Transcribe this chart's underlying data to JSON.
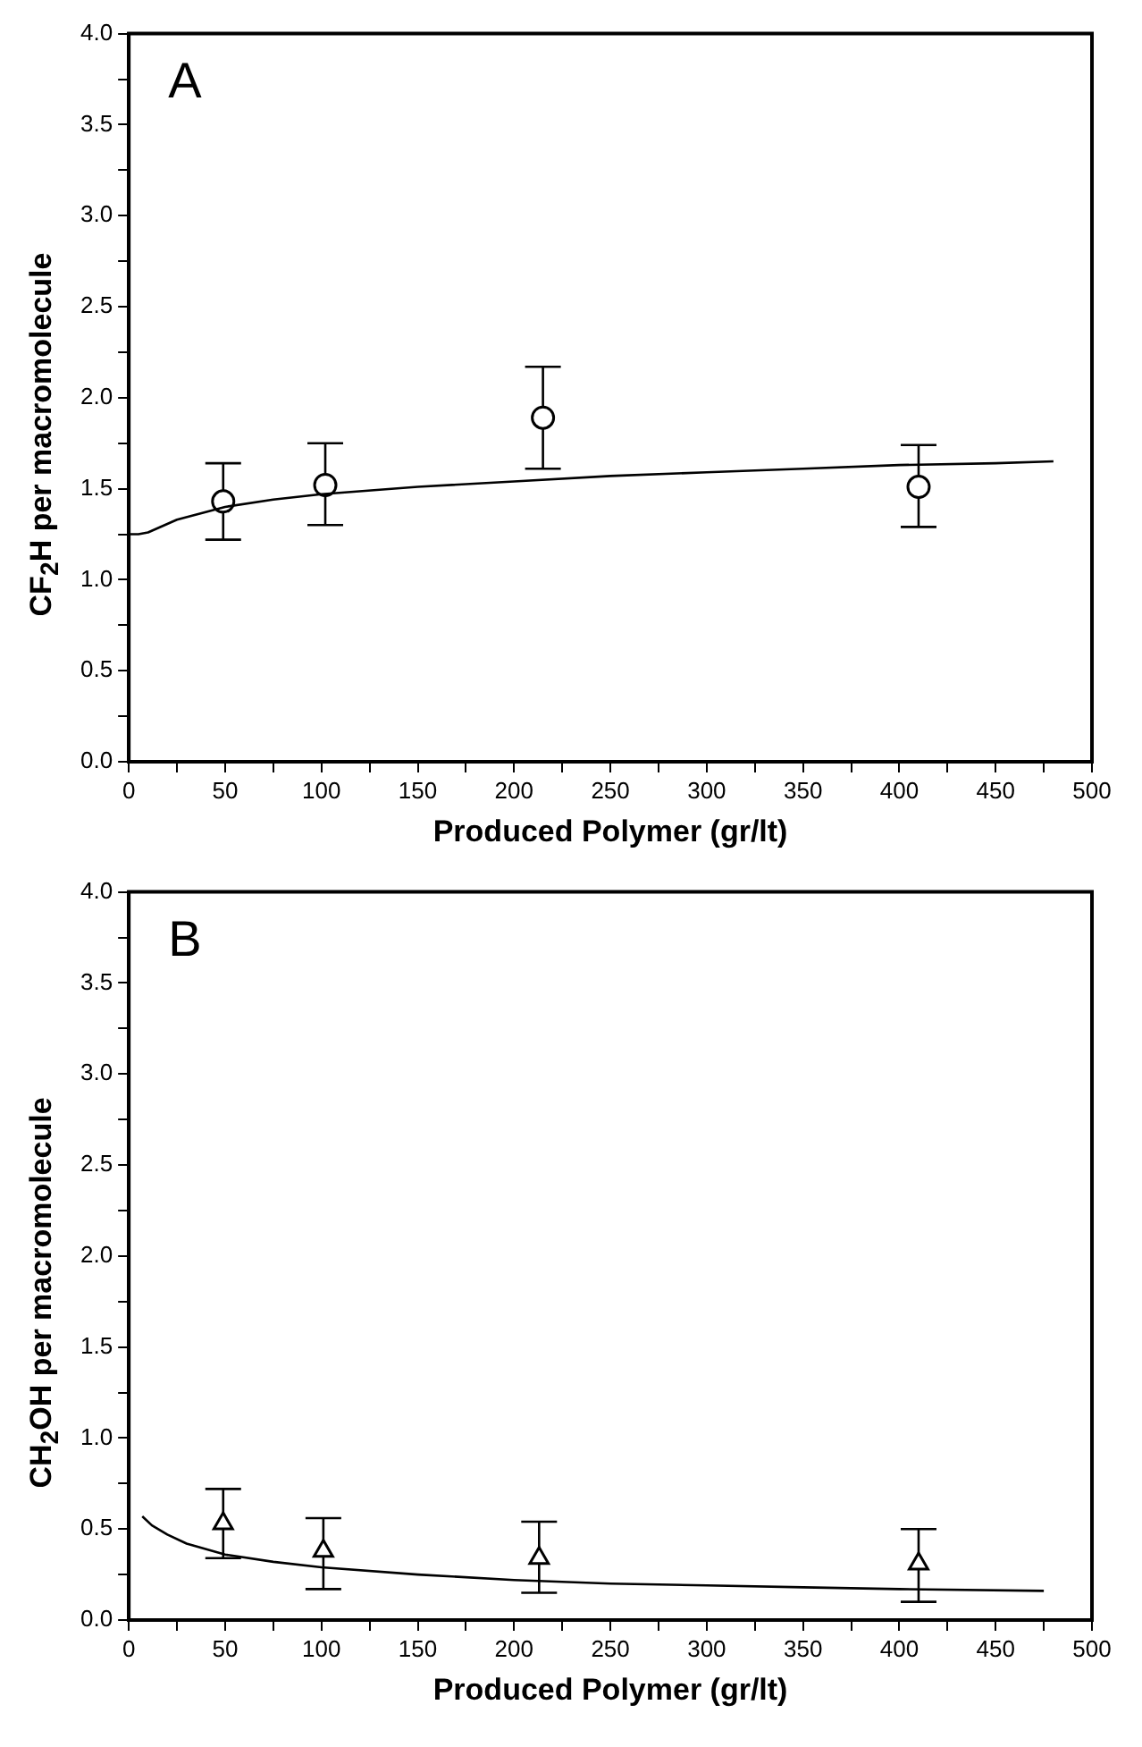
{
  "chart_data": [
    {
      "type": "scatter",
      "xlabel": "Produced Polymer (gr/lt)",
      "ylabel": "CF$_{2}$H per macromolecule",
      "annotations": [
        "A"
      ],
      "xlim": [
        0,
        500
      ],
      "ylim": [
        0,
        4
      ],
      "xticks": [
        0,
        {
          "value": 25,
          "label": null
        },
        50,
        {
          "value": 75,
          "label": null
        },
        100,
        {
          "value": 125,
          "label": null
        },
        150,
        {
          "value": 175,
          "label": null
        },
        200,
        {
          "value": 225,
          "label": null
        },
        250,
        {
          "value": 275,
          "label": null
        },
        300,
        {
          "value": 325,
          "label": null
        },
        350,
        {
          "value": 375,
          "label": null
        },
        400,
        {
          "value": 425,
          "label": null
        },
        450,
        {
          "value": 475,
          "label": null
        },
        500
      ],
      "yticks": [
        {
          "value": 0,
          "label": "0.0"
        },
        {
          "value": 0.25,
          "label": null
        },
        0.5,
        {
          "value": 0.75,
          "label": null
        },
        {
          "value": 1,
          "label": "1.0"
        },
        {
          "value": 1.25,
          "label": null
        },
        1.5,
        {
          "value": 1.75,
          "label": null
        },
        {
          "value": 2,
          "label": "2.0"
        },
        {
          "value": 2.25,
          "label": null
        },
        2.5,
        {
          "value": 2.75,
          "label": null
        },
        {
          "value": 3,
          "label": "3.0"
        },
        {
          "value": 3.25,
          "label": null
        },
        3.5,
        {
          "value": 3.75,
          "label": null
        },
        {
          "value": 4,
          "label": "4.0"
        }
      ],
      "series": [
        {
          "type": "line",
          "color": "#000000",
          "line_style": "solid",
          "x": [
            0,
            5,
            10,
            25,
            50,
            75,
            100,
            150,
            200,
            250,
            300,
            350,
            400,
            450,
            480
          ],
          "values": [
            1.25,
            1.25,
            1.26,
            1.33,
            1.4,
            1.44,
            1.47,
            1.51,
            1.54,
            1.57,
            1.59,
            1.61,
            1.63,
            1.64,
            1.65
          ]
        },
        {
          "type": "scatter",
          "color": "#000000",
          "marker": "circle",
          "x": [
            49,
            102,
            215,
            410
          ],
          "values": [
            1.43,
            1.52,
            1.89,
            1.51
          ],
          "errors": [
            [
              1.22,
              1.64
            ],
            [
              1.3,
              1.75
            ],
            [
              1.61,
              2.17
            ],
            [
              1.29,
              1.74
            ]
          ]
        }
      ]
    },
    {
      "type": "scatter",
      "xlabel": "Produced Polymer (gr/lt)",
      "ylabel": "CH$_{2}$OH per macromolecule",
      "annotations": [
        "B"
      ],
      "xlim": [
        0,
        500
      ],
      "ylim": [
        0,
        4
      ],
      "xticks": [
        0,
        {
          "value": 25,
          "label": null
        },
        50,
        {
          "value": 75,
          "label": null
        },
        100,
        {
          "value": 125,
          "label": null
        },
        150,
        {
          "value": 175,
          "label": null
        },
        200,
        {
          "value": 225,
          "label": null
        },
        250,
        {
          "value": 275,
          "label": null
        },
        300,
        {
          "value": 325,
          "label": null
        },
        350,
        {
          "value": 375,
          "label": null
        },
        400,
        {
          "value": 425,
          "label": null
        },
        450,
        {
          "value": 475,
          "label": null
        },
        500
      ],
      "yticks": [
        {
          "value": 0,
          "label": "0.0"
        },
        {
          "value": 0.25,
          "label": null
        },
        0.5,
        {
          "value": 0.75,
          "label": null
        },
        {
          "value": 1,
          "label": "1.0"
        },
        {
          "value": 1.25,
          "label": null
        },
        1.5,
        {
          "value": 1.75,
          "label": null
        },
        {
          "value": 2,
          "label": "2.0"
        },
        {
          "value": 2.25,
          "label": null
        },
        2.5,
        {
          "value": 2.75,
          "label": null
        },
        {
          "value": 3,
          "label": "3.0"
        },
        {
          "value": 3.25,
          "label": null
        },
        3.5,
        {
          "value": 3.75,
          "label": null
        },
        {
          "value": 4,
          "label": "4.0"
        }
      ],
      "series": [
        {
          "type": "line",
          "color": "#000000",
          "line_style": "solid",
          "x": [
            7,
            12,
            20,
            30,
            50,
            75,
            100,
            150,
            200,
            250,
            300,
            350,
            400,
            475
          ],
          "values": [
            0.57,
            0.52,
            0.47,
            0.42,
            0.36,
            0.32,
            0.29,
            0.25,
            0.22,
            0.2,
            0.19,
            0.18,
            0.17,
            0.16
          ]
        },
        {
          "type": "scatter",
          "color": "#000000",
          "marker": "triangle",
          "x": [
            49,
            101,
            213,
            410
          ],
          "values": [
            0.53,
            0.38,
            0.34,
            0.31
          ],
          "errors": [
            [
              0.34,
              0.72
            ],
            [
              0.17,
              0.56
            ],
            [
              0.15,
              0.54
            ],
            [
              0.1,
              0.5
            ]
          ]
        }
      ]
    }
  ]
}
